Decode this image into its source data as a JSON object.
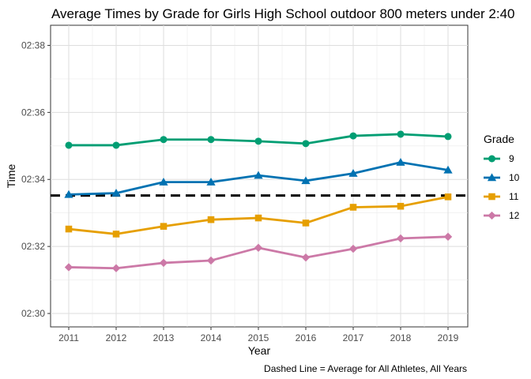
{
  "chart_data": {
    "type": "line",
    "title": "Average Times by Grade for Girls High School outdoor 800 meters under 2:40",
    "xlabel": "Year",
    "ylabel": "Time",
    "caption": "Dashed Line = Average for All Athletes, All Years",
    "x": [
      2011,
      2012,
      2013,
      2014,
      2015,
      2016,
      2017,
      2018,
      2019
    ],
    "x_tick_labels": [
      "2011",
      "2012",
      "2013",
      "2014",
      "2015",
      "2016",
      "2017",
      "2018",
      "2019"
    ],
    "y_ticks": [
      150,
      152,
      154,
      156,
      158
    ],
    "y_tick_labels": [
      "02:30",
      "02:32",
      "02:34",
      "02:36",
      "02:38"
    ],
    "ylim": [
      149.6,
      158.6
    ],
    "reference_line": 153.52,
    "grid": true,
    "legend": {
      "title": "Grade",
      "position": "right"
    },
    "series": [
      {
        "name": "9",
        "color": "#009E73",
        "marker": "circle",
        "values": [
          155.02,
          155.02,
          155.19,
          155.19,
          155.14,
          155.07,
          155.3,
          155.35,
          155.28
        ]
      },
      {
        "name": "10",
        "color": "#0072B2",
        "marker": "triangle",
        "values": [
          153.55,
          153.59,
          153.92,
          153.92,
          154.12,
          153.96,
          154.18,
          154.51,
          154.28
        ]
      },
      {
        "name": "11",
        "color": "#E69F00",
        "marker": "square",
        "values": [
          152.52,
          152.37,
          152.6,
          152.8,
          152.85,
          152.7,
          153.17,
          153.2,
          153.48
        ]
      },
      {
        "name": "12",
        "color": "#CC79A7",
        "marker": "diamond",
        "values": [
          151.38,
          151.35,
          151.51,
          151.58,
          151.96,
          151.67,
          151.93,
          152.24,
          152.29
        ]
      }
    ]
  }
}
